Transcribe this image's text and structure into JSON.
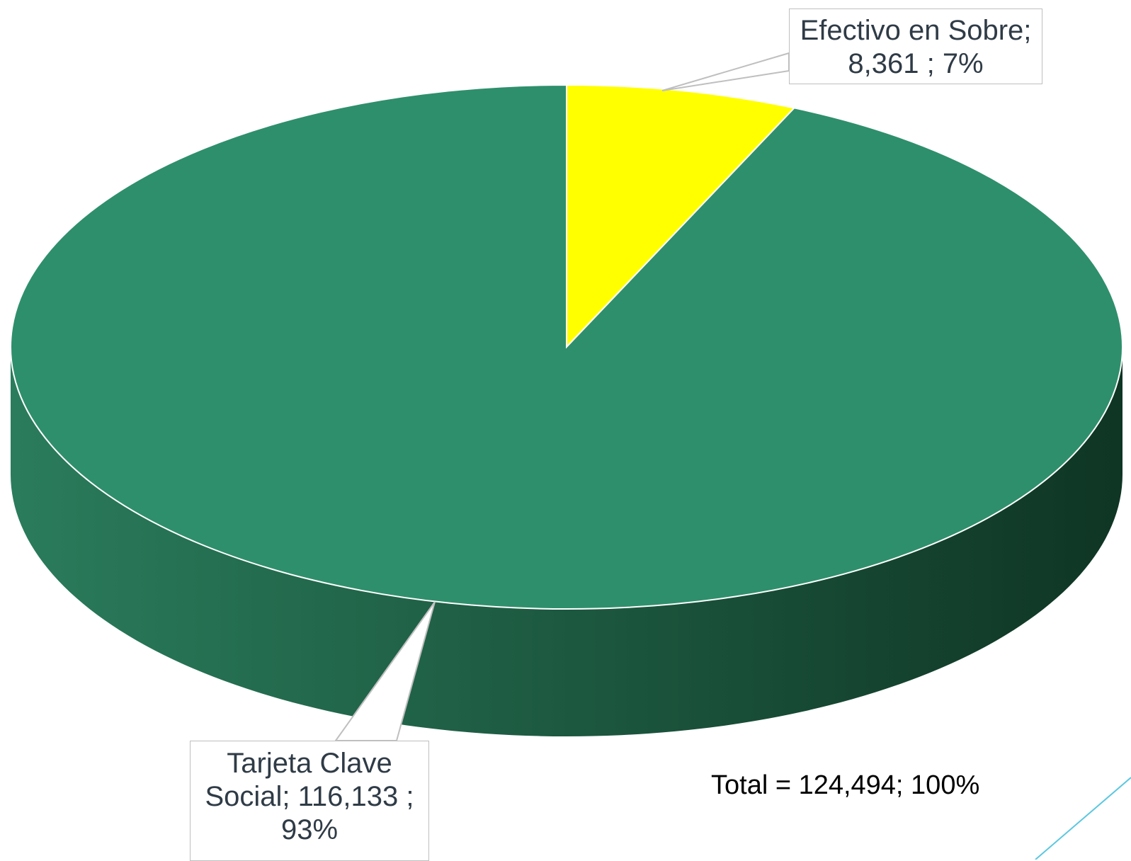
{
  "chart_data": {
    "type": "pie",
    "style": "3d",
    "slices": [
      {
        "label": "Efectivo en Sobre",
        "value": 8361,
        "percent": 7,
        "color": "#ffff00",
        "label_text": [
          "Efectivo en Sobre;",
          "8,361 ; 7%"
        ]
      },
      {
        "label": "Tarjeta Clave Social",
        "value": 116133,
        "percent": 93,
        "color": "#2e8f6c",
        "label_text": [
          "Tarjeta Clave",
          "Social;  116,133 ;",
          "93%"
        ]
      }
    ],
    "total_text": "Total = 124,494; 100%",
    "side_color_light": "#2a7c5c",
    "side_color_dark": "#0f3524",
    "accent_line_color": "#5bc8e0"
  }
}
